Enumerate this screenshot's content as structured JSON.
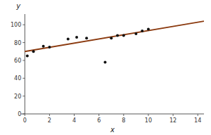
{
  "chart_data": {
    "type": "scatter",
    "xlabel": "x",
    "ylabel": "y",
    "series": [
      {
        "type": "line",
        "color": "#8B3A0F",
        "x": [
          0,
          14.5
        ],
        "values": [
          70,
          104
        ]
      },
      {
        "type": "scatter",
        "color": "#111111",
        "x": [
          0.2,
          0.7,
          1.5,
          2.0,
          3.5,
          4.2,
          5.0,
          6.5,
          7.0,
          7.5,
          8.0,
          9.0,
          9.5,
          10.0
        ],
        "values": [
          65,
          70,
          76,
          75,
          84,
          86,
          85,
          58,
          85,
          88,
          88,
          90,
          93,
          95
        ]
      }
    ],
    "xlim": [
      -0.3,
      14.5
    ],
    "ylim": [
      0,
      112
    ],
    "xticks": [
      0,
      2,
      4,
      6,
      8,
      10,
      12,
      14
    ],
    "yticks": [
      0,
      20,
      40,
      60,
      80,
      100
    ]
  }
}
